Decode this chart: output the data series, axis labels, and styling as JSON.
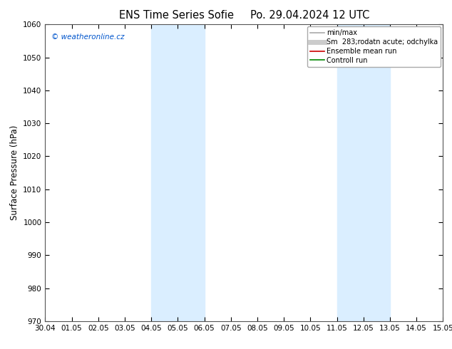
{
  "title_left": "ENS Time Series Sofie",
  "title_right": "Po. 29.04.2024 12 UTC",
  "ylabel": "Surface Pressure (hPa)",
  "ylim": [
    970,
    1060
  ],
  "yticks": [
    970,
    980,
    990,
    1000,
    1010,
    1020,
    1030,
    1040,
    1050,
    1060
  ],
  "x_start": "2024-04-30",
  "x_end": "2024-05-15",
  "x_tick_labels": [
    "30.04",
    "01.05",
    "02.05",
    "03.05",
    "04.05",
    "05.05",
    "06.05",
    "07.05",
    "08.05",
    "09.05",
    "10.05",
    "11.05",
    "12.05",
    "13.05",
    "14.05",
    "15.05"
  ],
  "shaded_bands": [
    {
      "x_start": "2024-05-04",
      "x_end": "2024-05-06"
    },
    {
      "x_start": "2024-05-11",
      "x_end": "2024-05-13"
    }
  ],
  "shade_color": "#daeeff",
  "background_color": "#ffffff",
  "plot_background": "#ffffff",
  "copyright_text": "© weatheronline.cz",
  "copyright_color": "#0055cc",
  "legend_entries": [
    {
      "label": "min/max",
      "color": "#aaaaaa",
      "lw": 1.2
    },
    {
      "label": "Sm  283;rodatn acute; odchylka",
      "color": "#cccccc",
      "lw": 5
    },
    {
      "label": "Ensemble mean run",
      "color": "#cc0000",
      "lw": 1.2
    },
    {
      "label": "Controll run",
      "color": "#008800",
      "lw": 1.2
    }
  ],
  "tick_label_fontsize": 7.5,
  "axis_label_fontsize": 8.5,
  "title_fontsize": 10.5,
  "copyright_fontsize": 7.5,
  "legend_fontsize": 7.0
}
